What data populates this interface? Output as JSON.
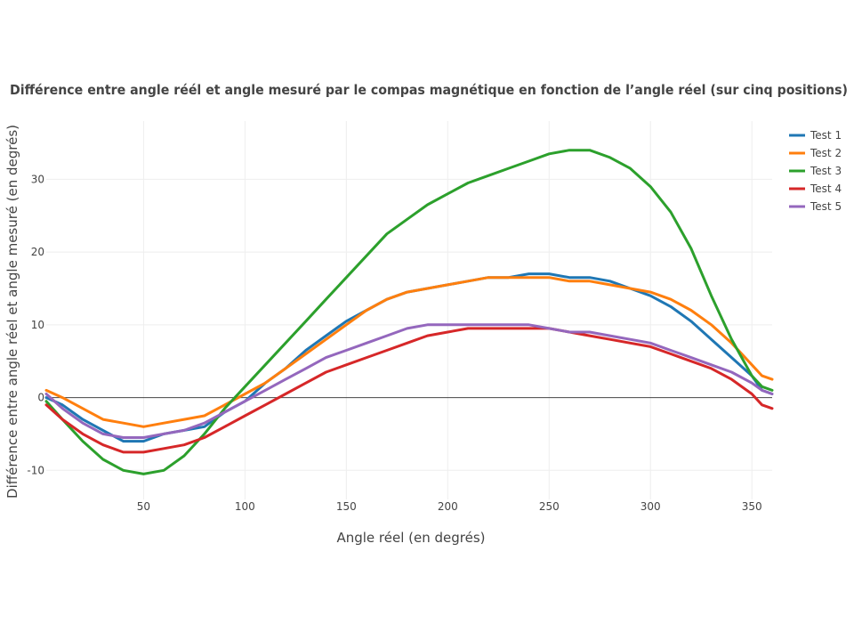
{
  "chart_data": {
    "type": "line",
    "title": "Différence entre angle réél et angle mesuré par le compas magnétique en fonction de l’angle réel (sur cinq positions)",
    "xlabel": "Angle réel (en degrés)",
    "ylabel": "Différence entre angle réel et angle mesuré (en degrés)",
    "xlim": [
      2,
      360
    ],
    "ylim": [
      -14,
      38
    ],
    "xticks": [
      50,
      100,
      150,
      200,
      250,
      300,
      350
    ],
    "yticks": [
      -10,
      0,
      10,
      20,
      30
    ],
    "grid": true,
    "legend_position": "top-right",
    "x": [
      0,
      10,
      20,
      30,
      40,
      50,
      60,
      70,
      80,
      90,
      100,
      110,
      120,
      130,
      140,
      150,
      160,
      170,
      180,
      190,
      200,
      210,
      220,
      230,
      240,
      250,
      260,
      270,
      280,
      290,
      300,
      310,
      320,
      330,
      340,
      350,
      355,
      360
    ],
    "series": [
      {
        "name": "Test 1",
        "color": "#1f77b4",
        "values": [
          0,
          -1,
          -3,
          -4.5,
          -6,
          -6,
          -5,
          -4.5,
          -4,
          -2,
          -0.5,
          2,
          4,
          6.5,
          8.5,
          10.5,
          12,
          13.5,
          14.5,
          15,
          15.5,
          16,
          16.5,
          16.5,
          17,
          17,
          16.5,
          16.5,
          16,
          15,
          14,
          12.5,
          10.5,
          8,
          5.5,
          3,
          1,
          0.5
        ]
      },
      {
        "name": "Test 2",
        "color": "#ff7f0e",
        "values": [
          1,
          0,
          -1.5,
          -3,
          -3.5,
          -4,
          -3.5,
          -3,
          -2.5,
          -1,
          0.5,
          2,
          4,
          6,
          8,
          10,
          12,
          13.5,
          14.5,
          15,
          15.5,
          16,
          16.5,
          16.5,
          16.5,
          16.5,
          16,
          16,
          15.5,
          15,
          14.5,
          13.5,
          12,
          10,
          7.5,
          4.5,
          3,
          2.5
        ]
      },
      {
        "name": "Test 3",
        "color": "#2ca02c",
        "values": [
          -0.5,
          -3,
          -6,
          -8.5,
          -10,
          -10.5,
          -10,
          -8,
          -5,
          -1.5,
          1.5,
          4.5,
          7.5,
          10.5,
          13.5,
          16.5,
          19.5,
          22.5,
          24.5,
          26.5,
          28,
          29.5,
          30.5,
          31.5,
          32.5,
          33.5,
          34,
          34,
          33,
          31.5,
          29,
          25.5,
          20.5,
          14,
          8,
          3,
          1.5,
          1
        ]
      },
      {
        "name": "Test 4",
        "color": "#d62728",
        "values": [
          -1,
          -3,
          -5,
          -6.5,
          -7.5,
          -7.5,
          -7,
          -6.5,
          -5.5,
          -4,
          -2.5,
          -1,
          0.5,
          2,
          3.5,
          4.5,
          5.5,
          6.5,
          7.5,
          8.5,
          9,
          9.5,
          9.5,
          9.5,
          9.5,
          9.5,
          9,
          8.5,
          8,
          7.5,
          7,
          6,
          5,
          4,
          2.5,
          0.5,
          -1,
          -1.5
        ]
      },
      {
        "name": "Test 5",
        "color": "#9467bd",
        "values": [
          0.5,
          -1.5,
          -3.5,
          -5,
          -5.5,
          -5.5,
          -5,
          -4.5,
          -3.5,
          -2,
          -0.5,
          1,
          2.5,
          4,
          5.5,
          6.5,
          7.5,
          8.5,
          9.5,
          10,
          10,
          10,
          10,
          10,
          10,
          9.5,
          9,
          9,
          8.5,
          8,
          7.5,
          6.5,
          5.5,
          4.5,
          3.5,
          2,
          1,
          0.5
        ]
      }
    ]
  }
}
